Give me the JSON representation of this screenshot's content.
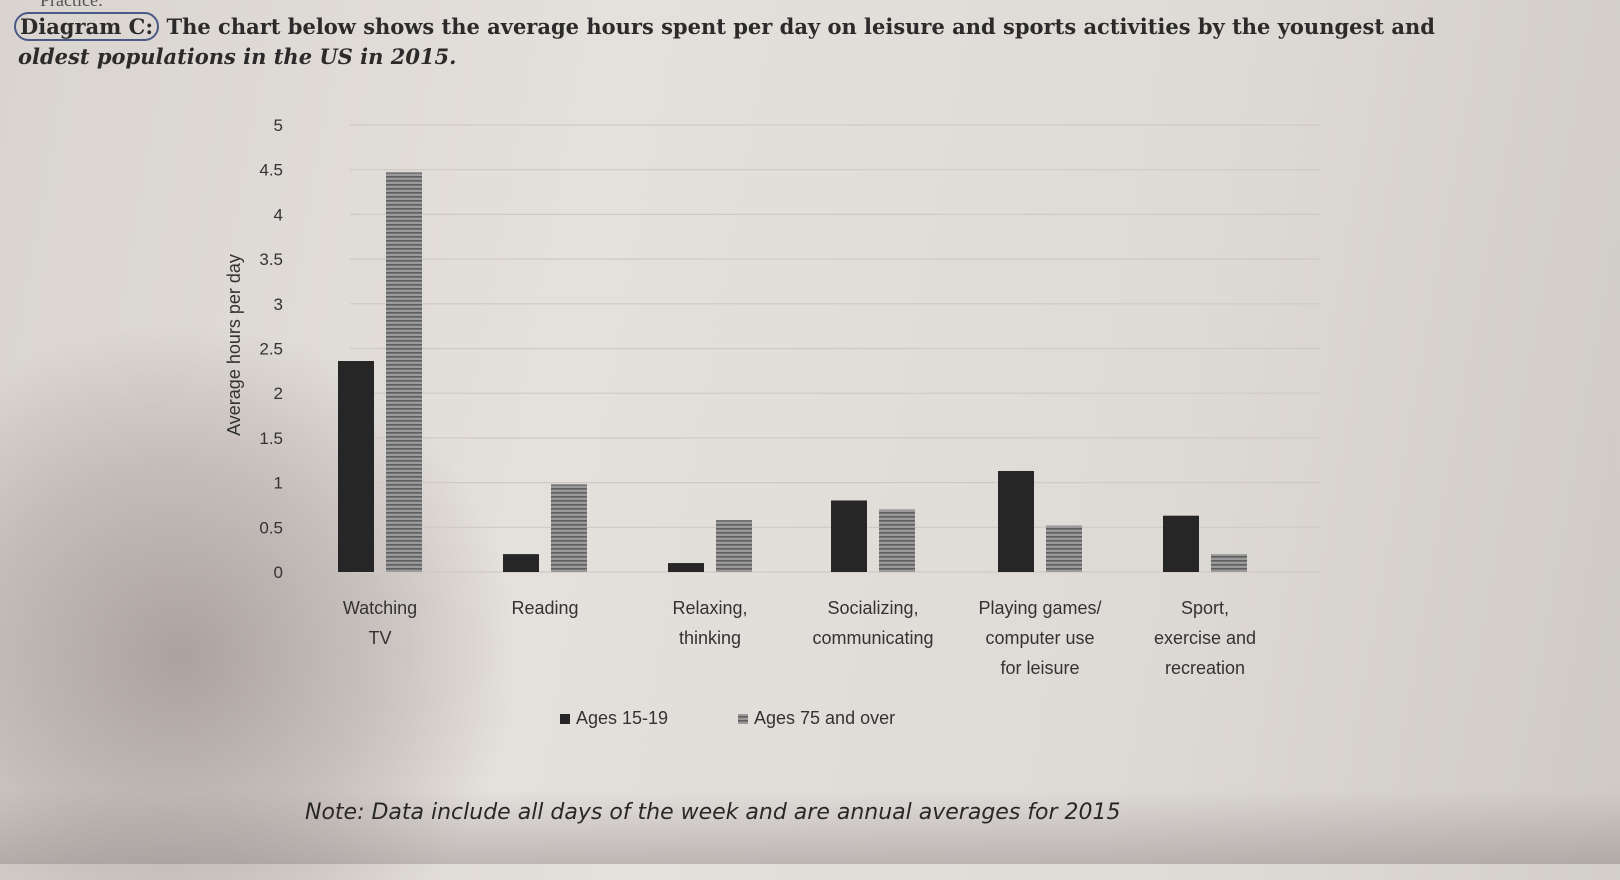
{
  "page": {
    "top_fragment": "Practice:",
    "caption_lead": "Diagram C:",
    "caption_rest": " The chart below shows the average hours spent per day on leisure and sports activities by the youngest and",
    "caption_line2": "oldest populations in the US in 2015.",
    "note": "Note: Data include all days of the week and are annual averages for 2015"
  },
  "colors": {
    "series_dark": "#262626",
    "series_striped": "#8a8a8a",
    "grid": "#cfcac6",
    "axis_text": "#333333"
  },
  "chart_data": {
    "type": "bar",
    "title": "",
    "ylabel": "Average hours per day",
    "xlabel": "",
    "ylim": [
      0,
      5
    ],
    "yticks": [
      "0",
      "0.5",
      "1",
      "1.5",
      "2",
      "2.5",
      "3",
      "3.5",
      "4",
      "4.5",
      "5"
    ],
    "grid": true,
    "legend_position": "bottom",
    "categories": [
      [
        "Watching",
        "TV"
      ],
      [
        "Reading"
      ],
      [
        "Relaxing,",
        "thinking"
      ],
      [
        "Socializing,",
        "communicating"
      ],
      [
        "Playing games/",
        "computer use",
        "for leisure"
      ],
      [
        "Sport,",
        "exercise and",
        "recreation"
      ]
    ],
    "series": [
      {
        "name": "Ages 15-19",
        "values": [
          2.36,
          0.2,
          0.1,
          0.8,
          1.13,
          0.63
        ],
        "style": "solid"
      },
      {
        "name": "Ages 75 and over",
        "values": [
          4.47,
          0.98,
          0.58,
          0.7,
          0.52,
          0.2
        ],
        "style": "striped"
      }
    ]
  }
}
